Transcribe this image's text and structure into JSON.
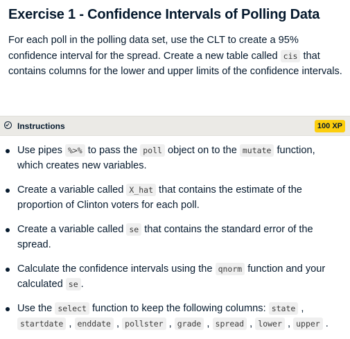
{
  "exercise": {
    "title": "Exercise 1 - Confidence Intervals of Polling Data",
    "description": {
      "text1": "For each poll in the polling data set, use the CLT to create a 95% confidence interval for the spread. Create a new table called ",
      "code1": "cis",
      "text2": " that contains columns for the lower and upper limits of the confidence intervals."
    }
  },
  "instructions_bar": {
    "label": "Instructions",
    "xp_badge": "100 XP"
  },
  "steps": [
    {
      "t1": "Use pipes ",
      "c1": "%>%",
      "t2": " to pass the ",
      "c2": "poll",
      "t3": " object on to the ",
      "c3": "mutate",
      "t4": " function, which creates new variables."
    },
    {
      "t1": "Create a variable called ",
      "c1": "X_hat",
      "t2": " that contains the estimate of the proportion of Clinton voters for each poll."
    },
    {
      "t1": "Create a variable called ",
      "c1": "se",
      "t2": " that contains the standard error of the spread."
    },
    {
      "t1": "Calculate the confidence intervals using the ",
      "c1": "qnorm",
      "t2": " function and your calculated ",
      "c2": "se",
      "t3": "."
    },
    {
      "t1": "Use the ",
      "c1": "select",
      "t2": " function to keep the following columns: ",
      "cols": [
        "state",
        "startdate",
        "enddate",
        "pollster",
        "grade",
        "spread",
        "lower",
        "upper"
      ],
      "sep": ",",
      "end": "."
    }
  ]
}
